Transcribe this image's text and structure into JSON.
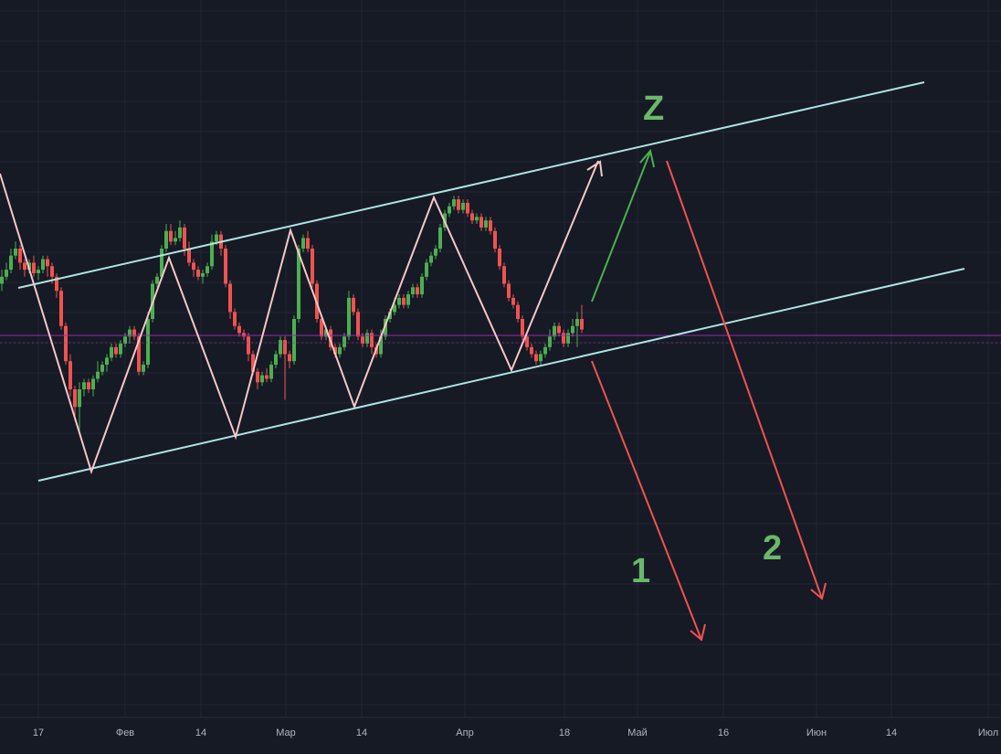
{
  "colors": {
    "background": "#161a25",
    "grid": "#232735",
    "up": "#26a69a",
    "up_bright": "#4caf50",
    "down": "#ef5350",
    "channel": "#aee3e3",
    "zigzag": "#f6c7c7",
    "arrow_up": "#4caf50",
    "arrow_down": "#ef5350",
    "price_line": "#9c27b0",
    "label": "#6bb86b",
    "axis_text": "#b2b5be"
  },
  "chart_data": {
    "type": "candlestick",
    "x_axis": {
      "ticks": [
        "17",
        "Фев",
        "14",
        "Мар",
        "14",
        "Апр",
        "18",
        "Май",
        "16",
        "Июн",
        "14",
        "Июл"
      ]
    },
    "grid": true,
    "scale": "y-down index 0-100",
    "candles": [
      [
        0,
        70,
        72,
        74,
        68
      ],
      [
        1,
        72,
        74,
        76,
        71
      ],
      [
        2,
        74,
        78,
        80,
        73
      ],
      [
        3,
        78,
        80,
        82,
        77
      ],
      [
        4,
        80,
        76,
        81,
        74
      ],
      [
        5,
        76,
        74,
        77,
        72
      ],
      [
        6,
        74,
        76,
        77,
        73
      ],
      [
        7,
        76,
        73,
        78,
        72
      ],
      [
        8,
        73,
        74,
        75,
        71
      ],
      [
        9,
        74,
        77,
        78,
        73
      ],
      [
        10,
        77,
        75,
        78,
        72
      ],
      [
        11,
        75,
        72,
        76,
        70
      ],
      [
        12,
        72,
        68,
        73,
        66
      ],
      [
        13,
        68,
        58,
        69,
        57
      ],
      [
        14,
        58,
        48,
        59,
        47
      ],
      [
        15,
        48,
        40,
        50,
        38
      ],
      [
        16,
        40,
        35,
        41,
        31
      ],
      [
        17,
        35,
        40,
        42,
        28
      ],
      [
        18,
        40,
        42,
        43,
        38
      ],
      [
        19,
        42,
        40,
        43,
        39
      ],
      [
        20,
        40,
        43,
        44,
        38
      ],
      [
        21,
        43,
        45,
        48,
        42
      ],
      [
        22,
        45,
        47,
        48,
        44
      ],
      [
        23,
        47,
        49,
        50,
        45
      ],
      [
        24,
        49,
        52,
        53,
        48
      ],
      [
        25,
        52,
        50,
        53,
        49
      ],
      [
        26,
        50,
        53,
        54,
        49
      ],
      [
        27,
        53,
        55,
        56,
        52
      ],
      [
        28,
        55,
        57,
        58,
        53
      ],
      [
        29,
        57,
        55,
        58,
        54
      ],
      [
        30,
        55,
        45,
        56,
        44
      ],
      [
        31,
        45,
        47,
        48,
        44
      ],
      [
        32,
        47,
        60,
        62,
        46
      ],
      [
        33,
        60,
        70,
        71,
        59
      ],
      [
        34,
        70,
        72,
        73,
        69
      ],
      [
        35,
        72,
        80,
        81,
        71
      ],
      [
        36,
        80,
        85,
        87,
        79
      ],
      [
        37,
        85,
        82,
        87,
        81
      ],
      [
        38,
        82,
        83,
        85,
        81
      ],
      [
        39,
        83,
        86,
        88,
        82
      ],
      [
        40,
        86,
        80,
        87,
        78
      ],
      [
        41,
        80,
        76,
        82,
        75
      ],
      [
        42,
        76,
        74,
        77,
        72
      ],
      [
        43,
        74,
        72,
        75,
        71
      ],
      [
        44,
        72,
        73,
        74,
        70
      ],
      [
        45,
        73,
        75,
        76,
        72
      ],
      [
        46,
        75,
        82,
        84,
        74
      ],
      [
        47,
        82,
        84,
        85,
        81
      ],
      [
        48,
        84,
        80,
        85,
        78
      ],
      [
        49,
        80,
        70,
        81,
        69
      ],
      [
        50,
        70,
        62,
        71,
        60
      ],
      [
        51,
        62,
        58,
        63,
        57
      ],
      [
        52,
        58,
        56,
        59,
        55
      ],
      [
        53,
        56,
        55,
        57,
        54
      ],
      [
        54,
        55,
        50,
        56,
        48
      ],
      [
        55,
        50,
        45,
        51,
        44
      ],
      [
        56,
        45,
        42,
        46,
        40
      ],
      [
        57,
        42,
        44,
        45,
        41
      ],
      [
        58,
        44,
        43,
        46,
        42
      ],
      [
        59,
        43,
        47,
        48,
        42
      ],
      [
        60,
        47,
        50,
        51,
        46
      ],
      [
        61,
        50,
        54,
        55,
        49
      ],
      [
        62,
        54,
        50,
        55,
        37
      ],
      [
        63,
        50,
        48,
        51,
        46
      ],
      [
        64,
        48,
        60,
        61,
        47
      ],
      [
        65,
        60,
        80,
        81,
        59
      ],
      [
        66,
        80,
        83,
        84,
        79
      ],
      [
        67,
        83,
        80,
        85,
        79
      ],
      [
        68,
        80,
        70,
        81,
        69
      ],
      [
        69,
        70,
        60,
        71,
        59
      ],
      [
        70,
        60,
        55,
        61,
        54
      ],
      [
        71,
        55,
        57,
        58,
        54
      ],
      [
        72,
        57,
        52,
        58,
        51
      ],
      [
        73,
        52,
        50,
        53,
        49
      ],
      [
        74,
        50,
        52,
        53,
        49
      ],
      [
        75,
        52,
        55,
        56,
        51
      ],
      [
        76,
        55,
        66,
        68,
        54
      ],
      [
        77,
        66,
        62,
        67,
        61
      ],
      [
        78,
        62,
        55,
        63,
        54
      ],
      [
        79,
        55,
        53,
        56,
        52
      ],
      [
        80,
        53,
        56,
        57,
        52
      ],
      [
        81,
        56,
        52,
        57,
        50
      ],
      [
        82,
        52,
        50,
        53,
        49
      ],
      [
        83,
        50,
        55,
        57,
        49
      ],
      [
        84,
        55,
        60,
        61,
        54
      ],
      [
        85,
        60,
        62,
        63,
        59
      ],
      [
        86,
        62,
        64,
        66,
        61
      ],
      [
        87,
        64,
        66,
        67,
        63
      ],
      [
        88,
        66,
        64,
        67,
        63
      ],
      [
        89,
        64,
        67,
        68,
        63
      ],
      [
        90,
        67,
        69,
        70,
        66
      ],
      [
        91,
        69,
        67,
        70,
        66
      ],
      [
        92,
        67,
        72,
        73,
        66
      ],
      [
        93,
        72,
        76,
        77,
        71
      ],
      [
        94,
        76,
        78,
        79,
        75
      ],
      [
        95,
        78,
        80,
        81,
        77
      ],
      [
        96,
        80,
        86,
        87,
        79
      ],
      [
        97,
        86,
        90,
        91,
        85
      ],
      [
        98,
        90,
        92,
        93,
        89
      ],
      [
        99,
        92,
        94,
        95,
        91
      ],
      [
        100,
        94,
        91,
        95,
        90
      ],
      [
        101,
        91,
        93,
        94,
        90
      ],
      [
        102,
        93,
        90,
        94,
        89
      ],
      [
        103,
        90,
        88,
        91,
        87
      ],
      [
        104,
        88,
        89,
        90,
        87
      ],
      [
        105,
        89,
        86,
        90,
        85
      ],
      [
        106,
        86,
        88,
        89,
        85
      ],
      [
        107,
        88,
        85,
        89,
        84
      ],
      [
        108,
        85,
        80,
        86,
        79
      ],
      [
        109,
        80,
        75,
        81,
        74
      ],
      [
        110,
        75,
        70,
        76,
        69
      ],
      [
        111,
        70,
        66,
        71,
        65
      ],
      [
        112,
        66,
        64,
        67,
        63
      ],
      [
        113,
        64,
        60,
        65,
        59
      ],
      [
        114,
        60,
        55,
        61,
        54
      ],
      [
        115,
        55,
        52,
        56,
        51
      ],
      [
        116,
        52,
        50,
        53,
        49
      ],
      [
        117,
        50,
        48,
        51,
        47
      ],
      [
        118,
        48,
        50,
        51,
        47
      ],
      [
        119,
        50,
        52,
        53,
        49
      ],
      [
        120,
        52,
        55,
        57,
        51
      ],
      [
        121,
        55,
        58,
        59,
        54
      ],
      [
        122,
        58,
        56,
        59,
        55
      ],
      [
        123,
        56,
        53,
        57,
        52
      ],
      [
        124,
        53,
        56,
        57,
        52
      ],
      [
        125,
        56,
        58,
        60,
        55
      ],
      [
        126,
        58,
        60,
        62,
        52
      ],
      [
        127,
        60,
        57,
        64,
        56
      ]
    ],
    "annotations": [
      "Z",
      "1",
      "2"
    ]
  }
}
